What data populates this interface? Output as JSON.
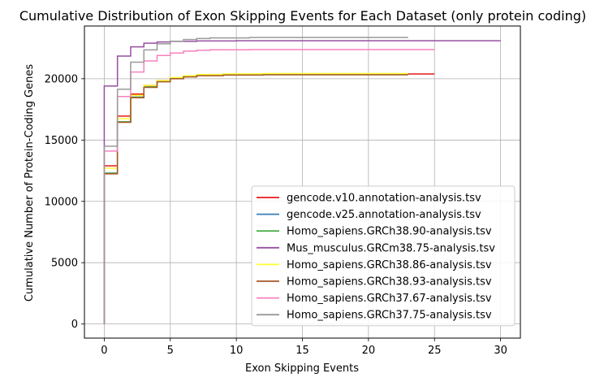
{
  "chart_data": {
    "type": "line",
    "title": "Cumulative Distribution of Exon Skipping Events for Each Dataset (only protein coding)",
    "xlabel": "Exon Skipping Events",
    "ylabel": "Cumulative Number of Protein-Coding Genes",
    "xlim": [
      -1.5,
      31.5
    ],
    "ylim": [
      -1150,
      24300
    ],
    "xticks": [
      0,
      5,
      10,
      15,
      20,
      25,
      30
    ],
    "yticks": [
      0,
      5000,
      10000,
      15000,
      20000
    ],
    "grid": true,
    "step": true,
    "legend_position": "lower right",
    "series": [
      {
        "name": "gencode.v10.annotation-analysis.tsv",
        "color": "#e41a1c",
        "points": [
          [
            0,
            0
          ],
          [
            0,
            12900
          ],
          [
            1,
            12900
          ],
          [
            1,
            16950
          ],
          [
            2,
            16950
          ],
          [
            2,
            18750
          ],
          [
            3,
            18750
          ],
          [
            3,
            19450
          ],
          [
            4,
            19450
          ],
          [
            4,
            19850
          ],
          [
            5,
            19850
          ],
          [
            5,
            20050
          ],
          [
            6,
            20050
          ],
          [
            6,
            20200
          ],
          [
            7,
            20200
          ],
          [
            7,
            20280
          ],
          [
            8,
            20280
          ],
          [
            8,
            20330
          ],
          [
            10,
            20330
          ],
          [
            10,
            20360
          ],
          [
            14,
            20360
          ],
          [
            14,
            20380
          ],
          [
            23,
            20380
          ],
          [
            23,
            20390
          ],
          [
            25,
            20390
          ]
        ]
      },
      {
        "name": "gencode.v25.annotation-analysis.tsv",
        "color": "#377eb8",
        "points": [
          [
            0,
            0
          ],
          [
            0,
            12300
          ],
          [
            1,
            12300
          ],
          [
            1,
            16500
          ],
          [
            2,
            16500
          ],
          [
            2,
            18500
          ],
          [
            3,
            18500
          ],
          [
            3,
            19350
          ],
          [
            4,
            19350
          ],
          [
            4,
            19800
          ],
          [
            5,
            19800
          ],
          [
            5,
            20050
          ],
          [
            6,
            20050
          ],
          [
            6,
            20200
          ],
          [
            7,
            20200
          ],
          [
            7,
            20300
          ],
          [
            9,
            20300
          ],
          [
            9,
            20350
          ],
          [
            12,
            20350
          ],
          [
            12,
            20370
          ],
          [
            23,
            20370
          ]
        ]
      },
      {
        "name": "Homo_sapiens.GRCh38.90-analysis.tsv",
        "color": "#4daf4a",
        "points": [
          [
            0,
            0
          ],
          [
            0,
            12300
          ],
          [
            1,
            12300
          ],
          [
            1,
            16500
          ],
          [
            2,
            16500
          ],
          [
            2,
            18500
          ],
          [
            3,
            18500
          ],
          [
            3,
            19350
          ],
          [
            4,
            19350
          ],
          [
            4,
            19800
          ],
          [
            5,
            19800
          ],
          [
            5,
            20050
          ],
          [
            6,
            20050
          ],
          [
            6,
            20200
          ],
          [
            7,
            20200
          ],
          [
            7,
            20300
          ],
          [
            9,
            20300
          ],
          [
            9,
            20350
          ],
          [
            12,
            20350
          ],
          [
            12,
            20370
          ],
          [
            23,
            20370
          ]
        ]
      },
      {
        "name": "Mus_musculus.GRCm38.75-analysis.tsv",
        "color": "#984ea3",
        "points": [
          [
            0,
            0
          ],
          [
            0,
            19400
          ],
          [
            1,
            19400
          ],
          [
            1,
            21850
          ],
          [
            2,
            21850
          ],
          [
            2,
            22600
          ],
          [
            3,
            22600
          ],
          [
            3,
            22900
          ],
          [
            4,
            22900
          ],
          [
            4,
            23000
          ],
          [
            5,
            23000
          ],
          [
            5,
            23050
          ],
          [
            7,
            23050
          ],
          [
            7,
            23080
          ],
          [
            10,
            23080
          ],
          [
            10,
            23100
          ],
          [
            30,
            23100
          ]
        ]
      },
      {
        "name": "Homo_sapiens.GRCh38.86-analysis.tsv",
        "color": "#ffff33",
        "points": [
          [
            0,
            0
          ],
          [
            0,
            12700
          ],
          [
            1,
            12700
          ],
          [
            1,
            16750
          ],
          [
            2,
            16750
          ],
          [
            2,
            18650
          ],
          [
            3,
            18650
          ],
          [
            3,
            19450
          ],
          [
            4,
            19450
          ],
          [
            4,
            19850
          ],
          [
            5,
            19850
          ],
          [
            5,
            20100
          ],
          [
            6,
            20100
          ],
          [
            6,
            20250
          ],
          [
            7,
            20250
          ],
          [
            7,
            20350
          ],
          [
            9,
            20350
          ],
          [
            9,
            20400
          ],
          [
            12,
            20400
          ],
          [
            12,
            20420
          ],
          [
            23,
            20420
          ]
        ]
      },
      {
        "name": "Homo_sapiens.GRCh38.93-analysis.tsv",
        "color": "#a65628",
        "points": [
          [
            0,
            0
          ],
          [
            0,
            12250
          ],
          [
            1,
            12250
          ],
          [
            1,
            16450
          ],
          [
            2,
            16450
          ],
          [
            2,
            18450
          ],
          [
            3,
            18450
          ],
          [
            3,
            19300
          ],
          [
            4,
            19300
          ],
          [
            4,
            19750
          ],
          [
            5,
            19750
          ],
          [
            5,
            20000
          ],
          [
            6,
            20000
          ],
          [
            6,
            20150
          ],
          [
            7,
            20150
          ],
          [
            7,
            20250
          ],
          [
            9,
            20250
          ],
          [
            9,
            20300
          ],
          [
            12,
            20300
          ],
          [
            12,
            20320
          ],
          [
            23,
            20320
          ]
        ]
      },
      {
        "name": "Homo_sapiens.GRCh37.67-analysis.tsv",
        "color": "#f781bf",
        "points": [
          [
            0,
            0
          ],
          [
            0,
            14100
          ],
          [
            1,
            14100
          ],
          [
            1,
            18550
          ],
          [
            2,
            18550
          ],
          [
            2,
            20550
          ],
          [
            3,
            20550
          ],
          [
            3,
            21450
          ],
          [
            4,
            21450
          ],
          [
            4,
            21900
          ],
          [
            5,
            21900
          ],
          [
            5,
            22100
          ],
          [
            6,
            22100
          ],
          [
            6,
            22250
          ],
          [
            7,
            22250
          ],
          [
            7,
            22320
          ],
          [
            8,
            22320
          ],
          [
            8,
            22360
          ],
          [
            11,
            22360
          ],
          [
            11,
            22380
          ],
          [
            25,
            22380
          ]
        ]
      },
      {
        "name": "Homo_sapiens.GRCh37.75-analysis.tsv",
        "color": "#999999",
        "points": [
          [
            0,
            0
          ],
          [
            0,
            14500
          ],
          [
            1,
            14500
          ],
          [
            1,
            19150
          ],
          [
            2,
            19150
          ],
          [
            2,
            21350
          ],
          [
            3,
            21350
          ],
          [
            3,
            22350
          ],
          [
            4,
            22350
          ],
          [
            4,
            22850
          ],
          [
            5,
            22850
          ],
          [
            5,
            23050
          ],
          [
            6,
            23050
          ],
          [
            6,
            23200
          ],
          [
            7,
            23200
          ],
          [
            7,
            23280
          ],
          [
            8,
            23280
          ],
          [
            8,
            23330
          ],
          [
            11,
            23330
          ],
          [
            11,
            23360
          ],
          [
            23,
            23360
          ]
        ]
      }
    ]
  }
}
